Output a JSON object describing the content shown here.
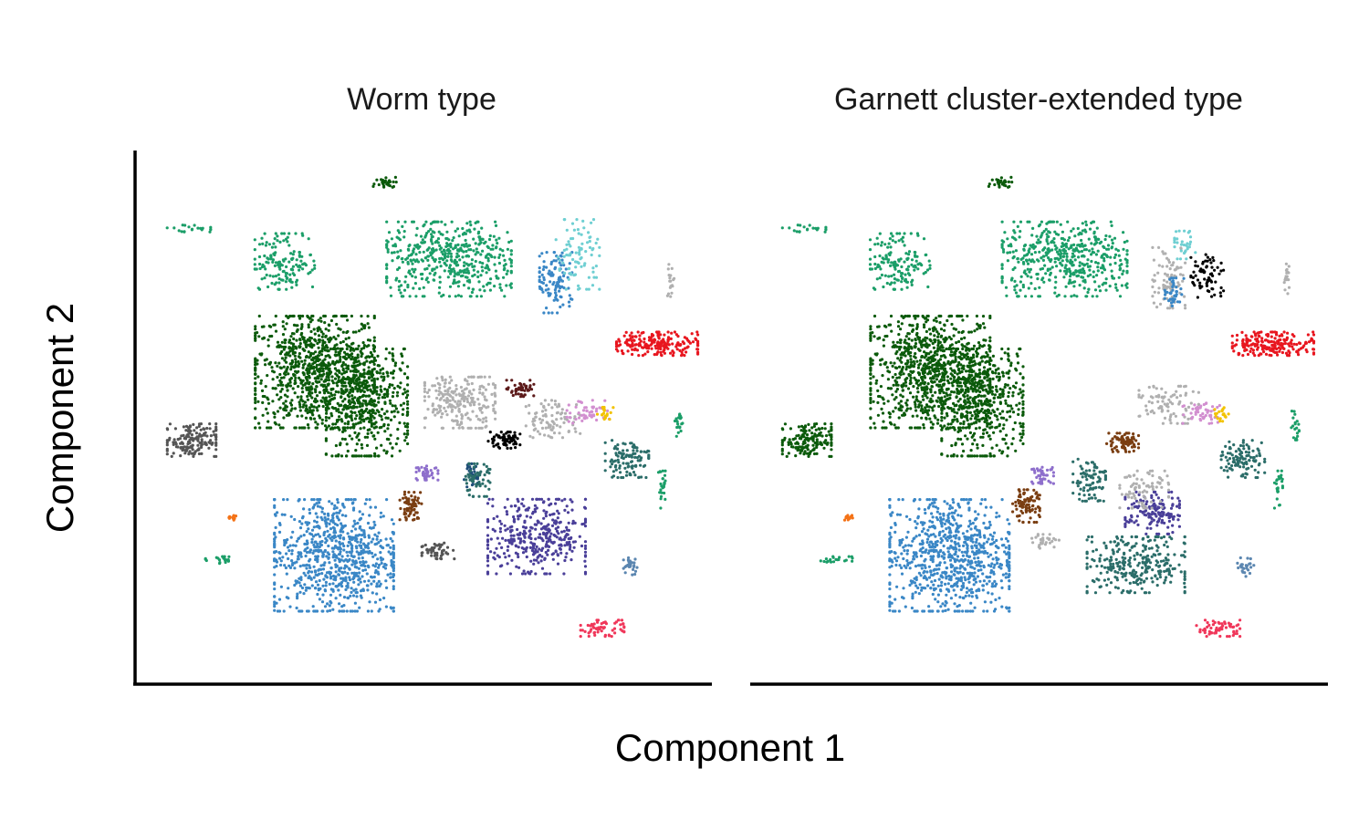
{
  "chart_data": {
    "type": "scatter",
    "xlabel": "Component 1",
    "ylabel": "Component 2",
    "grid": false,
    "legend": "none",
    "panels": [
      {
        "title": "Worm type",
        "clusters": [
          {
            "color": "#0b5a0b",
            "center": [
              -3.5,
              2.2
            ],
            "spread": [
              2.2,
              2.4
            ],
            "n": 900,
            "shape": "blob"
          },
          {
            "color": "#0b5a0b",
            "center": [
              -1.6,
              0.9
            ],
            "spread": [
              1.5,
              2.3
            ],
            "n": 500,
            "shape": "blob"
          },
          {
            "color": "#555555",
            "center": [
              -8.0,
              -0.7
            ],
            "spread": [
              0.9,
              0.7
            ],
            "n": 160,
            "shape": "blob"
          },
          {
            "color": "#3a87c6",
            "center": [
              -2.8,
              -5.6
            ],
            "spread": [
              2.2,
              2.4
            ],
            "n": 800,
            "shape": "blob"
          },
          {
            "color": "#1b9e68",
            "center": [
              -4.6,
              6.9
            ],
            "spread": [
              1.1,
              1.2
            ],
            "n": 150,
            "shape": "blob"
          },
          {
            "color": "#1b9e68",
            "center": [
              1.4,
              7.0
            ],
            "spread": [
              2.3,
              1.6
            ],
            "n": 480,
            "shape": "blob"
          },
          {
            "color": "#0b5a0b",
            "center": [
              -0.9,
              10.3
            ],
            "spread": [
              0.6,
              0.25
            ],
            "n": 30,
            "shape": "blob"
          },
          {
            "color": "#1b9e68",
            "center": [
              -8.1,
              8.3
            ],
            "spread": [
              0.8,
              0.15
            ],
            "n": 20,
            "shape": "blob"
          },
          {
            "color": "#4a3f99",
            "center": [
              4.6,
              -4.8
            ],
            "spread": [
              1.8,
              1.6
            ],
            "n": 380,
            "shape": "blob"
          },
          {
            "color": "#b0b0b0",
            "center": [
              1.8,
              0.9
            ],
            "spread": [
              1.3,
              1.1
            ],
            "n": 240,
            "shape": "blob"
          },
          {
            "color": "#b0b0b0",
            "center": [
              5.2,
              0.2
            ],
            "spread": [
              1.0,
              0.8
            ],
            "n": 90,
            "shape": "blob"
          },
          {
            "color": "#e8161f",
            "center": [
              9.0,
              3.4
            ],
            "spread": [
              1.5,
              0.5
            ],
            "n": 200,
            "shape": "blob"
          },
          {
            "color": "#2b6d69",
            "center": [
              7.9,
              -1.5
            ],
            "spread": [
              0.8,
              0.8
            ],
            "n": 110,
            "shape": "blob"
          },
          {
            "color": "#000000",
            "center": [
              3.4,
              -0.7
            ],
            "spread": [
              0.6,
              0.35
            ],
            "n": 70,
            "shape": "blob"
          },
          {
            "color": "#1f4e79",
            "center": [
              2.2,
              -2.2
            ],
            "spread": [
              0.25,
              0.5
            ],
            "n": 30,
            "shape": "blob"
          },
          {
            "color": "#2b6d69",
            "center": [
              2.4,
              -2.4
            ],
            "spread": [
              0.5,
              0.7
            ],
            "n": 60,
            "shape": "blob"
          },
          {
            "color": "#8e6fcc",
            "center": [
              0.6,
              -2.1
            ],
            "spread": [
              0.4,
              0.3
            ],
            "n": 40,
            "shape": "blob"
          },
          {
            "color": "#7a3e12",
            "center": [
              0.0,
              -3.5
            ],
            "spread": [
              0.4,
              0.6
            ],
            "n": 70,
            "shape": "blob"
          },
          {
            "color": "#555555",
            "center": [
              1.0,
              -5.4
            ],
            "spread": [
              0.6,
              0.35
            ],
            "n": 50,
            "shape": "blob"
          },
          {
            "color": "#5c1a1a",
            "center": [
              4.0,
              1.5
            ],
            "spread": [
              0.5,
              0.35
            ],
            "n": 45,
            "shape": "blob"
          },
          {
            "color": "#d28fd0",
            "center": [
              6.5,
              0.5
            ],
            "spread": [
              0.8,
              0.5
            ],
            "n": 50,
            "shape": "blob"
          },
          {
            "color": "#f2c200",
            "center": [
              7.1,
              0.4
            ],
            "spread": [
              0.3,
              0.3
            ],
            "n": 20,
            "shape": "blob"
          },
          {
            "color": "#3a87c6",
            "center": [
              5.3,
              6.0
            ],
            "spread": [
              0.6,
              1.3
            ],
            "n": 110,
            "shape": "blob"
          },
          {
            "color": "#6fcfd2",
            "center": [
              6.1,
              7.2
            ],
            "spread": [
              0.8,
              1.5
            ],
            "n": 90,
            "shape": "blob"
          },
          {
            "color": "#f0375a",
            "center": [
              7.0,
              -8.7
            ],
            "spread": [
              0.8,
              0.35
            ],
            "n": 60,
            "shape": "blob"
          },
          {
            "color": "#5b86b0",
            "center": [
              8.0,
              -6.1
            ],
            "spread": [
              0.3,
              0.4
            ],
            "n": 25,
            "shape": "blob"
          },
          {
            "color": "#f47216",
            "center": [
              -6.5,
              -4.0
            ],
            "spread": [
              0.2,
              0.1
            ],
            "n": 12,
            "shape": "blob"
          },
          {
            "color": "#1b9e68",
            "center": [
              -6.9,
              -5.8
            ],
            "spread": [
              0.6,
              0.15
            ],
            "n": 20,
            "shape": "blob"
          },
          {
            "color": "#1b9e68",
            "center": [
              9.2,
              -2.8
            ],
            "spread": [
              0.15,
              0.8
            ],
            "n": 25,
            "shape": "blob"
          },
          {
            "color": "#1b9e68",
            "center": [
              9.8,
              0.0
            ],
            "spread": [
              0.15,
              0.7
            ],
            "n": 20,
            "shape": "blob"
          },
          {
            "color": "#b0b0b0",
            "center": [
              9.5,
              6.1
            ],
            "spread": [
              0.12,
              0.7
            ],
            "n": 18,
            "shape": "blob"
          }
        ]
      },
      {
        "title": "Garnett cluster-extended type",
        "clusters": [
          {
            "color": "#0b5a0b",
            "center": [
              -3.5,
              2.2
            ],
            "spread": [
              2.2,
              2.4
            ],
            "n": 900,
            "shape": "blob"
          },
          {
            "color": "#0b5a0b",
            "center": [
              -1.6,
              0.9
            ],
            "spread": [
              1.5,
              2.3
            ],
            "n": 500,
            "shape": "blob"
          },
          {
            "color": "#0b5a0b",
            "center": [
              -8.0,
              -0.7
            ],
            "spread": [
              0.9,
              0.7
            ],
            "n": 160,
            "shape": "blob"
          },
          {
            "color": "#3a87c6",
            "center": [
              -2.8,
              -5.6
            ],
            "spread": [
              2.2,
              2.4
            ],
            "n": 800,
            "shape": "blob"
          },
          {
            "color": "#1b9e68",
            "center": [
              -4.6,
              6.9
            ],
            "spread": [
              1.1,
              1.2
            ],
            "n": 150,
            "shape": "blob"
          },
          {
            "color": "#1b9e68",
            "center": [
              1.4,
              7.0
            ],
            "spread": [
              2.3,
              1.6
            ],
            "n": 480,
            "shape": "blob"
          },
          {
            "color": "#0b5a0b",
            "center": [
              -0.9,
              10.3
            ],
            "spread": [
              0.6,
              0.25
            ],
            "n": 30,
            "shape": "blob"
          },
          {
            "color": "#1b9e68",
            "center": [
              -8.1,
              8.3
            ],
            "spread": [
              0.8,
              0.15
            ],
            "n": 20,
            "shape": "blob"
          },
          {
            "color": "#2b6d69",
            "center": [
              4.0,
              -6.0
            ],
            "spread": [
              1.8,
              1.2
            ],
            "n": 300,
            "shape": "blob"
          },
          {
            "color": "#4a3f99",
            "center": [
              4.6,
              -3.8
            ],
            "spread": [
              1.0,
              0.9
            ],
            "n": 150,
            "shape": "blob"
          },
          {
            "color": "#b0b0b0",
            "center": [
              4.3,
              -2.8
            ],
            "spread": [
              0.9,
              0.8
            ],
            "n": 80,
            "shape": "blob"
          },
          {
            "color": "#b0b0b0",
            "center": [
              5.2,
              0.8
            ],
            "spread": [
              1.1,
              0.8
            ],
            "n": 90,
            "shape": "blob"
          },
          {
            "color": "#e8161f",
            "center": [
              9.0,
              3.4
            ],
            "spread": [
              1.5,
              0.5
            ],
            "n": 200,
            "shape": "blob"
          },
          {
            "color": "#2b6d69",
            "center": [
              7.9,
              -1.5
            ],
            "spread": [
              0.8,
              0.8
            ],
            "n": 110,
            "shape": "blob"
          },
          {
            "color": "#2b6d69",
            "center": [
              2.3,
              -2.4
            ],
            "spread": [
              0.6,
              0.9
            ],
            "n": 90,
            "shape": "blob"
          },
          {
            "color": "#7a3e12",
            "center": [
              3.5,
              -0.8
            ],
            "spread": [
              0.6,
              0.4
            ],
            "n": 80,
            "shape": "blob"
          },
          {
            "color": "#7a3e12",
            "center": [
              0.0,
              -3.5
            ],
            "spread": [
              0.5,
              0.7
            ],
            "n": 90,
            "shape": "blob"
          },
          {
            "color": "#8e6fcc",
            "center": [
              0.6,
              -2.2
            ],
            "spread": [
              0.4,
              0.35
            ],
            "n": 40,
            "shape": "blob"
          },
          {
            "color": "#b0b0b0",
            "center": [
              0.7,
              -5.0
            ],
            "spread": [
              0.5,
              0.3
            ],
            "n": 30,
            "shape": "blob"
          },
          {
            "color": "#d28fd0",
            "center": [
              6.5,
              0.5
            ],
            "spread": [
              0.8,
              0.5
            ],
            "n": 50,
            "shape": "blob"
          },
          {
            "color": "#f2c200",
            "center": [
              7.1,
              0.4
            ],
            "spread": [
              0.3,
              0.3
            ],
            "n": 20,
            "shape": "blob"
          },
          {
            "color": "#b0b0b0",
            "center": [
              5.2,
              6.2
            ],
            "spread": [
              0.6,
              1.3
            ],
            "n": 90,
            "shape": "blob"
          },
          {
            "color": "#3a87c6",
            "center": [
              5.4,
              5.6
            ],
            "spread": [
              0.35,
              0.6
            ],
            "n": 40,
            "shape": "blob"
          },
          {
            "color": "#000000",
            "center": [
              6.6,
              6.2
            ],
            "spread": [
              0.6,
              1.0
            ],
            "n": 70,
            "shape": "blob"
          },
          {
            "color": "#6fcfd2",
            "center": [
              5.8,
              7.6
            ],
            "spread": [
              0.4,
              0.6
            ],
            "n": 30,
            "shape": "blob"
          },
          {
            "color": "#f0375a",
            "center": [
              7.0,
              -8.7
            ],
            "spread": [
              0.8,
              0.35
            ],
            "n": 60,
            "shape": "blob"
          },
          {
            "color": "#5b86b0",
            "center": [
              8.0,
              -6.1
            ],
            "spread": [
              0.3,
              0.4
            ],
            "n": 25,
            "shape": "blob"
          },
          {
            "color": "#f47216",
            "center": [
              -6.5,
              -4.0
            ],
            "spread": [
              0.2,
              0.1
            ],
            "n": 12,
            "shape": "blob"
          },
          {
            "color": "#1b9e68",
            "center": [
              -6.9,
              -5.8
            ],
            "spread": [
              0.6,
              0.15
            ],
            "n": 20,
            "shape": "blob"
          },
          {
            "color": "#1b9e68",
            "center": [
              9.2,
              -2.8
            ],
            "spread": [
              0.15,
              0.8
            ],
            "n": 25,
            "shape": "blob"
          },
          {
            "color": "#1b9e68",
            "center": [
              9.8,
              0.0
            ],
            "spread": [
              0.15,
              0.7
            ],
            "n": 20,
            "shape": "blob"
          },
          {
            "color": "#b0b0b0",
            "center": [
              9.5,
              6.1
            ],
            "spread": [
              0.12,
              0.7
            ],
            "n": 18,
            "shape": "blob"
          }
        ]
      }
    ],
    "xlim": [
      -10,
      11
    ],
    "ylim": [
      -11,
      11.5
    ]
  }
}
